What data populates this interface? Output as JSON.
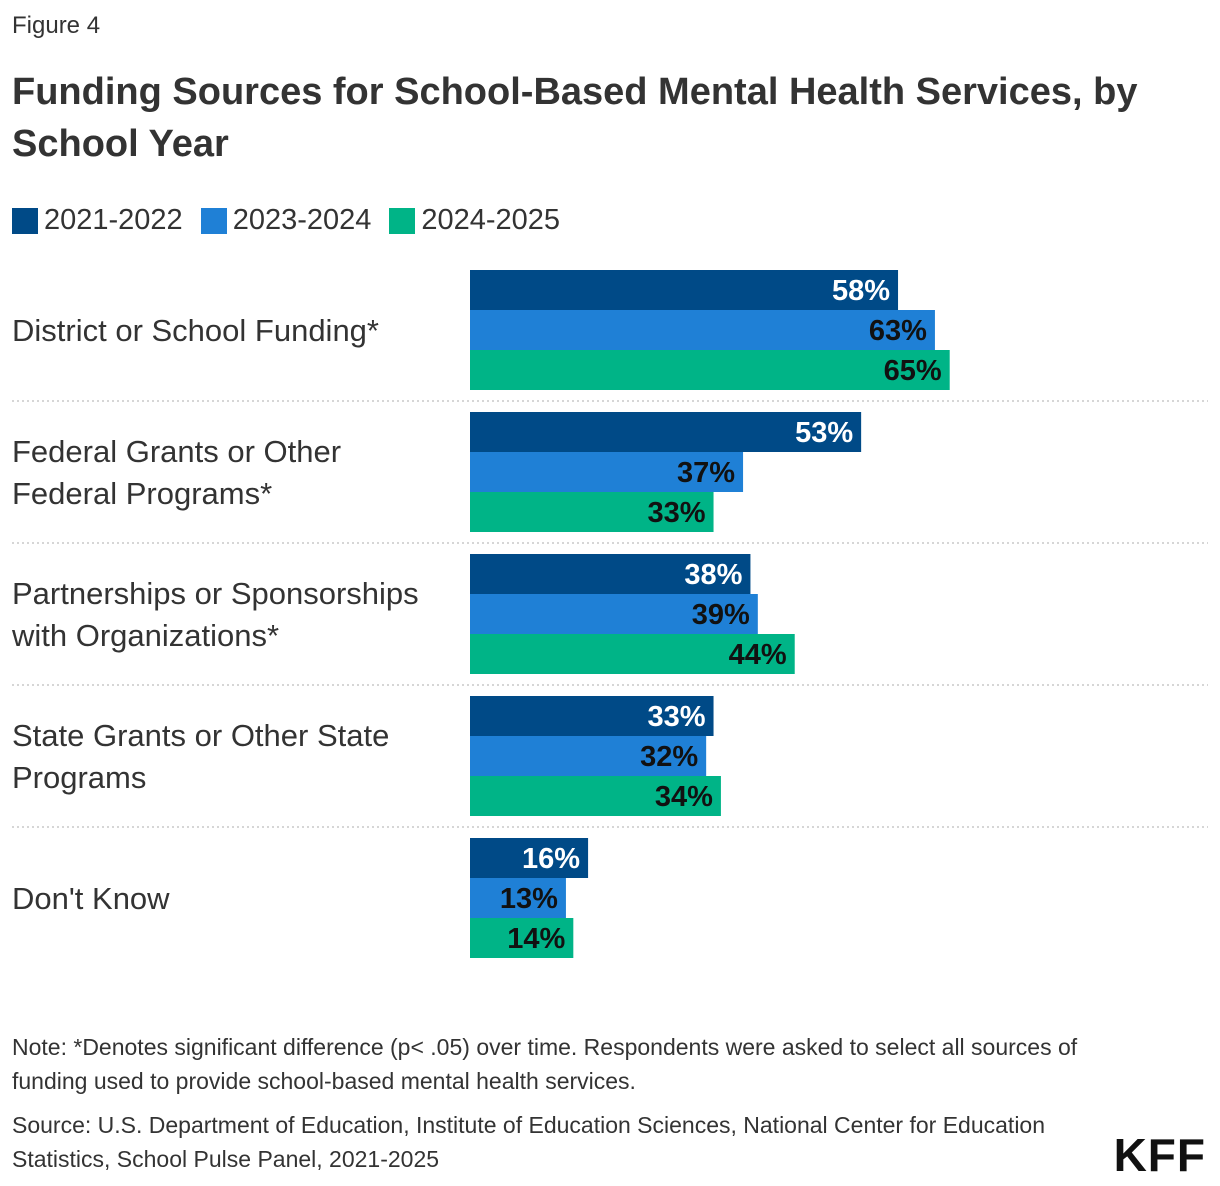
{
  "figure_label": "Figure 4",
  "note": "Note: *Denotes significant difference (p< .05) over time. Respondents were asked to select all sources of funding used to provide school-based mental health services.",
  "source": "Source: U.S. Department of Education, Institute of Education Sciences, National Center for Education Statistics, School Pulse Panel, 2021-2025",
  "logo": "KFF",
  "chart_data": {
    "type": "bar",
    "orientation": "horizontal",
    "title": "Funding Sources for School-Based Mental Health Services, by School Year",
    "xlabel": "",
    "ylabel": "",
    "xlim": [
      0,
      100
    ],
    "grid": false,
    "legend_position": "top-left",
    "categories": [
      [
        "District or School Funding*"
      ],
      [
        "Federal Grants or Other",
        "Federal Programs*"
      ],
      [
        "Partnerships or Sponsorships",
        "with Organizations*"
      ],
      [
        "State Grants or Other State",
        "Programs"
      ],
      [
        "Don't Know"
      ]
    ],
    "series": [
      {
        "name": "2021-2022",
        "color": "#004a87",
        "label_color": "#ffffff",
        "values": [
          58,
          53,
          38,
          33,
          16
        ]
      },
      {
        "name": "2023-2024",
        "color": "#1f80d6",
        "label_color": "#111111",
        "values": [
          63,
          37,
          39,
          32,
          13
        ]
      },
      {
        "name": "2024-2025",
        "color": "#00b487",
        "label_color": "#111111",
        "values": [
          65,
          33,
          44,
          34,
          14
        ]
      }
    ],
    "value_suffix": "%"
  }
}
